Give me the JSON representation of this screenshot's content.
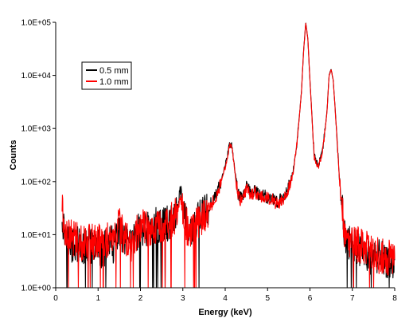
{
  "chart_data": {
    "type": "line",
    "xlabel": "Energy (keV)",
    "ylabel": "Counts",
    "xlim": [
      0,
      8
    ],
    "ylim": [
      1,
      100000
    ],
    "y_scale": "log",
    "grid": false,
    "legend_position": "top-left",
    "x_ticks": [
      "0",
      "1",
      "2",
      "3",
      "4",
      "5",
      "6",
      "7",
      "8"
    ],
    "y_ticks": [
      "1.0E+00",
      "1.0E+01",
      "1.0E+02",
      "1.0E+03",
      "1.0E+04",
      "1.0E+05"
    ],
    "series": [
      {
        "name": "0.5 mm",
        "color": "#000000",
        "x": [
          0.15,
          0.2,
          0.3,
          0.4,
          0.5,
          0.6,
          0.7,
          0.8,
          0.9,
          1.0,
          1.1,
          1.2,
          1.3,
          1.4,
          1.5,
          1.6,
          1.7,
          1.8,
          1.9,
          2.0,
          2.1,
          2.2,
          2.3,
          2.4,
          2.5,
          2.6,
          2.7,
          2.8,
          2.9,
          2.95,
          3.0,
          3.1,
          3.2,
          3.3,
          3.4,
          3.5,
          3.6,
          3.7,
          3.8,
          3.9,
          4.0,
          4.1,
          4.15,
          4.2,
          4.3,
          4.4,
          4.5,
          4.6,
          4.7,
          4.8,
          4.9,
          5.0,
          5.1,
          5.2,
          5.3,
          5.4,
          5.5,
          5.6,
          5.7,
          5.8,
          5.85,
          5.9,
          5.95,
          6.0,
          6.1,
          6.2,
          6.3,
          6.4,
          6.45,
          6.5,
          6.55,
          6.6,
          6.7,
          6.8,
          6.9,
          7.0,
          7.2,
          7.4,
          7.6,
          7.8,
          8.0
        ],
        "values": [
          25,
          12,
          8,
          6,
          7,
          5,
          6,
          7,
          5,
          6,
          5,
          6,
          7,
          6,
          12,
          8,
          6,
          6,
          10,
          12,
          13,
          12,
          14,
          15,
          14,
          16,
          18,
          20,
          45,
          75,
          30,
          15,
          10,
          16,
          20,
          25,
          30,
          45,
          60,
          100,
          200,
          480,
          500,
          250,
          60,
          45,
          80,
          60,
          70,
          55,
          55,
          50,
          50,
          40,
          45,
          55,
          80,
          150,
          600,
          5000,
          30000,
          95000,
          50000,
          8000,
          300,
          200,
          400,
          2000,
          10000,
          13000,
          8000,
          2000,
          100,
          12,
          8,
          6,
          5,
          4,
          4,
          3,
          3
        ]
      },
      {
        "name": "1.0 mm",
        "color": "#ff0000",
        "x": [
          0.15,
          0.2,
          0.3,
          0.4,
          0.5,
          0.6,
          0.7,
          0.8,
          0.9,
          1.0,
          1.1,
          1.2,
          1.3,
          1.4,
          1.5,
          1.6,
          1.7,
          1.8,
          1.9,
          2.0,
          2.1,
          2.2,
          2.3,
          2.4,
          2.5,
          2.6,
          2.7,
          2.8,
          2.9,
          2.95,
          3.0,
          3.1,
          3.2,
          3.3,
          3.4,
          3.5,
          3.6,
          3.7,
          3.8,
          3.9,
          4.0,
          4.1,
          4.15,
          4.2,
          4.3,
          4.4,
          4.5,
          4.6,
          4.7,
          4.8,
          4.9,
          5.0,
          5.1,
          5.2,
          5.3,
          5.4,
          5.5,
          5.6,
          5.7,
          5.8,
          5.85,
          5.9,
          5.95,
          6.0,
          6.1,
          6.2,
          6.3,
          6.4,
          6.45,
          6.5,
          6.55,
          6.6,
          6.7,
          6.8,
          6.9,
          7.0,
          7.2,
          7.4,
          7.6,
          7.8,
          8.0
        ],
        "values": [
          30,
          14,
          10,
          8,
          9,
          7,
          8,
          9,
          7,
          8,
          7,
          8,
          9,
          8,
          16,
          9,
          7,
          6,
          11,
          13,
          14,
          13,
          15,
          15,
          15,
          16,
          18,
          20,
          35,
          45,
          25,
          14,
          11,
          16,
          20,
          25,
          30,
          40,
          55,
          95,
          190,
          470,
          490,
          240,
          55,
          40,
          75,
          55,
          65,
          50,
          50,
          48,
          48,
          38,
          42,
          52,
          75,
          140,
          580,
          4800,
          29000,
          95000,
          50000,
          8000,
          280,
          190,
          380,
          1900,
          9800,
          13000,
          8000,
          1900,
          100,
          14,
          9,
          7,
          6,
          5,
          4,
          4,
          3
        ]
      }
    ]
  }
}
